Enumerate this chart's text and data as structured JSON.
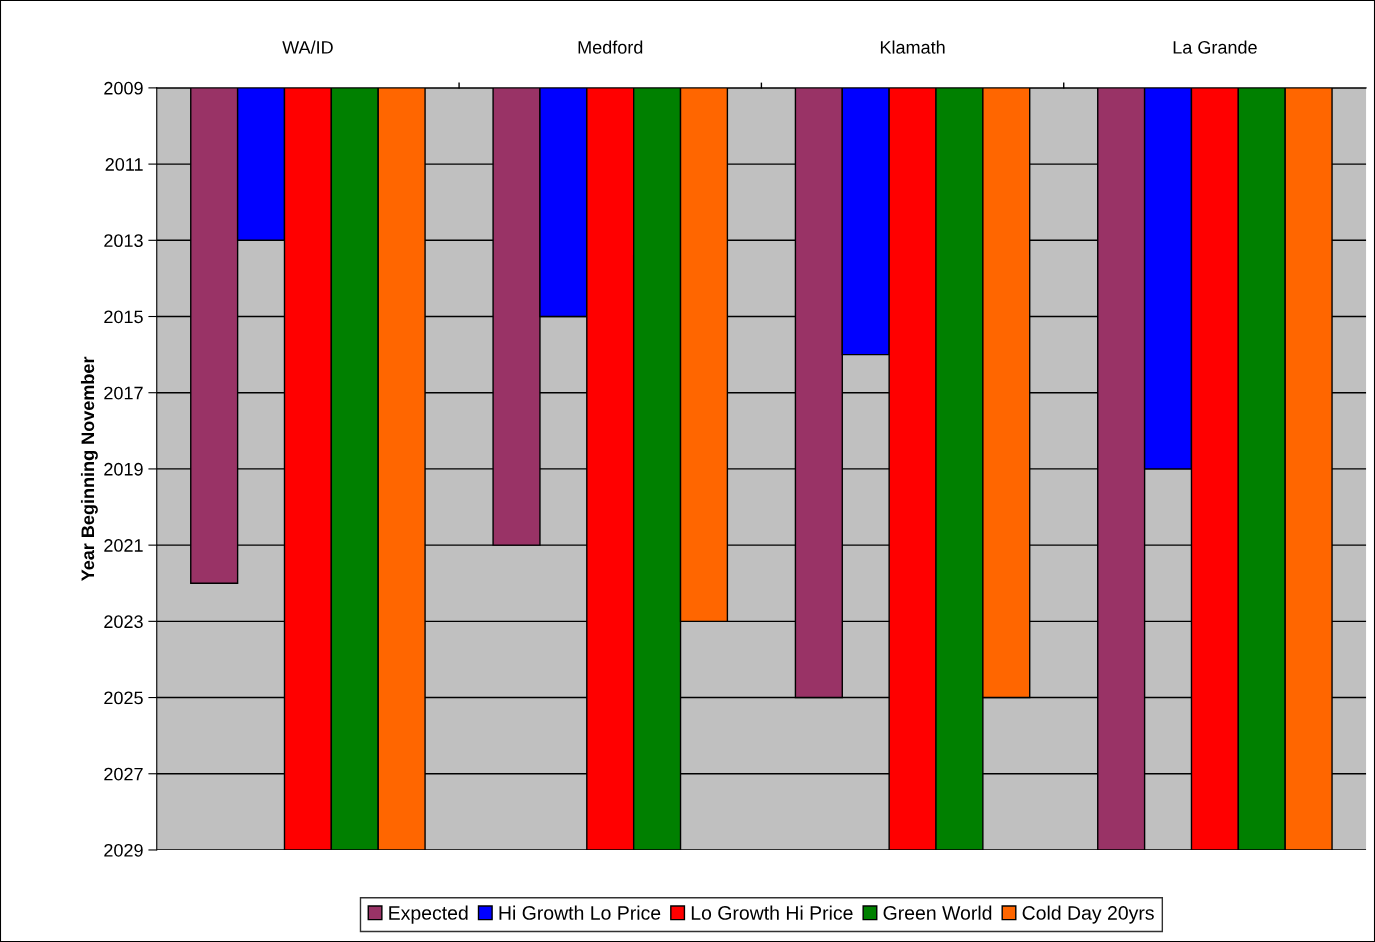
{
  "chart_data": {
    "type": "bar",
    "ylabel": "Year Beginning November",
    "categories": [
      "WA/ID",
      "Medford",
      "Klamath",
      "La Grande"
    ],
    "series": [
      {
        "name": "Expected",
        "color": "#993366",
        "values": [
          2022,
          2021,
          2025,
          2029
        ]
      },
      {
        "name": "Hi Growth Lo Price",
        "color": "#0000ff",
        "values": [
          2013,
          2015,
          2016,
          2019
        ]
      },
      {
        "name": "Lo Growth Hi Price",
        "color": "#ff0000",
        "values": [
          2029,
          2029,
          2029,
          2029
        ]
      },
      {
        "name": "Green World",
        "color": "#008000",
        "values": [
          2029,
          2029,
          2029,
          2029
        ]
      },
      {
        "name": "Cold Day 20yrs",
        "color": "#ff6600",
        "values": [
          2029,
          2023,
          2025,
          2029
        ]
      }
    ],
    "ylim": [
      2029,
      2009
    ],
    "yticks": [
      2009,
      2011,
      2013,
      2015,
      2017,
      2019,
      2021,
      2023,
      2025,
      2027,
      2029
    ],
    "grid": "y",
    "legend": "bottom"
  }
}
